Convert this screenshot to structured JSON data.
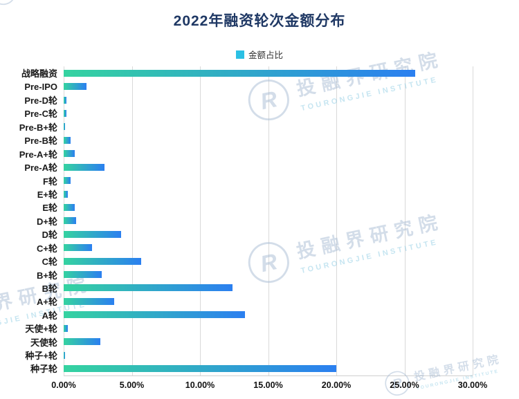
{
  "chart": {
    "title": "2022年融资轮次金额分布",
    "legend": "金额占比",
    "legend_color": "#2bc0e4"
  },
  "watermark": {
    "cn": "投融界研究院",
    "en": "TOURONGJIE INSTITUTE",
    "logo_letter": "R"
  },
  "chart_data": {
    "type": "bar",
    "orientation": "horizontal",
    "title": "2022年融资轮次金额分布",
    "legend": [
      "金额占比"
    ],
    "legend_position": "top",
    "categories": [
      "战略融资",
      "Pre-IPO",
      "Pre-D轮",
      "Pre-C轮",
      "Pre-B+轮",
      "Pre-B轮",
      "Pre-A+轮",
      "Pre-A轮",
      "F轮",
      "E+轮",
      "E轮",
      "D+轮",
      "D轮",
      "C+轮",
      "C轮",
      "B+轮",
      "B轮",
      "A+轮",
      "A轮",
      "天使+轮",
      "天使轮",
      "种子+轮",
      "种子轮"
    ],
    "values": [
      25.8,
      1.7,
      0.2,
      0.2,
      0.1,
      0.5,
      0.8,
      3.0,
      0.5,
      0.3,
      0.8,
      0.9,
      4.2,
      2.1,
      5.7,
      2.8,
      12.4,
      3.7,
      13.3,
      0.3,
      2.7,
      0.1,
      20.0
    ],
    "value_unit": "%",
    "xlabel": "",
    "ylabel": "",
    "xlim": [
      0,
      30
    ],
    "x_ticks": [
      "0.00%",
      "5.00%",
      "10.00%",
      "15.00%",
      "20.00%",
      "25.00%",
      "30.00%"
    ],
    "grid": true,
    "bar_gradient": [
      "#35d3a0",
      "#2b7ff0"
    ]
  }
}
